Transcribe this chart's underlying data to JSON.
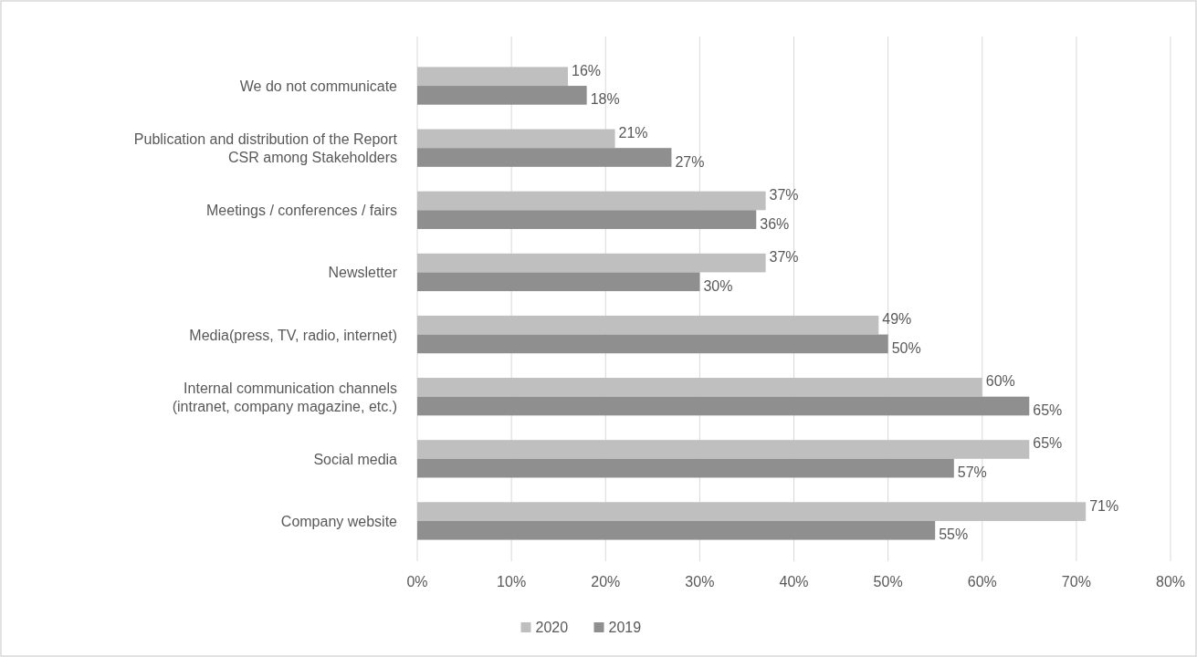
{
  "chart_data": {
    "type": "bar",
    "orientation": "horizontal",
    "categories": [
      "We do not communicate",
      "Publication and distribution of the Report\nCSR among Stakeholders",
      "Meetings / conferences / fairs",
      "Newsletter",
      "Media(press, TV, radio, internet)",
      "Internal communication channels\n(intranet, company magazine, etc.)",
      "Social media",
      "Company website"
    ],
    "series": [
      {
        "name": "2020",
        "color": "#bfbfbf",
        "values": [
          16,
          21,
          37,
          37,
          49,
          60,
          65,
          71
        ],
        "value_labels": [
          "16%",
          "21%",
          "37%",
          "37%",
          "49%",
          "60%",
          "65%",
          "71%"
        ]
      },
      {
        "name": "2019",
        "color": "#8f8f8f",
        "values": [
          18,
          27,
          36,
          30,
          50,
          65,
          57,
          55
        ],
        "value_labels": [
          "18%",
          "27%",
          "36%",
          "30%",
          "50%",
          "65%",
          "57%",
          "55%"
        ]
      }
    ],
    "xlim": [
      0,
      80
    ],
    "xticks": [
      {
        "value": 0,
        "label": "0%"
      },
      {
        "value": 10,
        "label": "10%"
      },
      {
        "value": 20,
        "label": "20%"
      },
      {
        "value": 30,
        "label": "30%"
      },
      {
        "value": 40,
        "label": "40%"
      },
      {
        "value": 50,
        "label": "50%"
      },
      {
        "value": 60,
        "label": "60%"
      },
      {
        "value": 70,
        "label": "70%"
      },
      {
        "value": 80,
        "label": "80%"
      }
    ],
    "grid": "x",
    "legend": "bottom"
  }
}
